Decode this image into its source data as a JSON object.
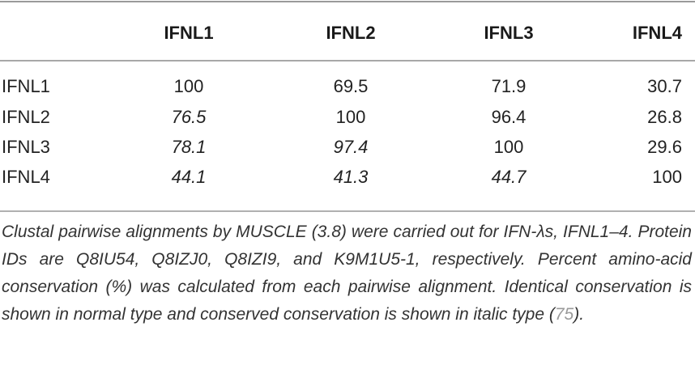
{
  "table": {
    "header": [
      "",
      "IFNL1",
      "IFNL2",
      "IFNL3",
      "IFNL4"
    ],
    "rows": [
      {
        "label": "IFNL1",
        "cells": [
          {
            "value": "100",
            "italic": false
          },
          {
            "value": "69.5",
            "italic": false
          },
          {
            "value": "71.9",
            "italic": false
          },
          {
            "value": "30.7",
            "italic": false
          }
        ]
      },
      {
        "label": "IFNL2",
        "cells": [
          {
            "value": "76.5",
            "italic": true
          },
          {
            "value": "100",
            "italic": false
          },
          {
            "value": "96.4",
            "italic": false
          },
          {
            "value": "26.8",
            "italic": false
          }
        ]
      },
      {
        "label": "IFNL3",
        "cells": [
          {
            "value": "78.1",
            "italic": true
          },
          {
            "value": "97.4",
            "italic": true
          },
          {
            "value": "100",
            "italic": false
          },
          {
            "value": "29.6",
            "italic": false
          }
        ]
      },
      {
        "label": "IFNL4",
        "cells": [
          {
            "value": "44.1",
            "italic": true
          },
          {
            "value": "41.3",
            "italic": true
          },
          {
            "value": "44.7",
            "italic": true
          },
          {
            "value": "100",
            "italic": false
          }
        ]
      }
    ]
  },
  "caption": {
    "text": "Clustal pairwise alignments by MUSCLE (3.8) were carried out for IFN-λs, IFNL1–4. Protein IDs are Q8IU54, Q8IZJ0, Q8IZI9, and K9M1U5-1, respectively. Percent amino-acid conservation (%) was calculated from each pairwise alignment. Identical conservation is shown in normal type and conserved conservation is shown in italic type (",
    "reference": "75",
    "closing": ")."
  }
}
